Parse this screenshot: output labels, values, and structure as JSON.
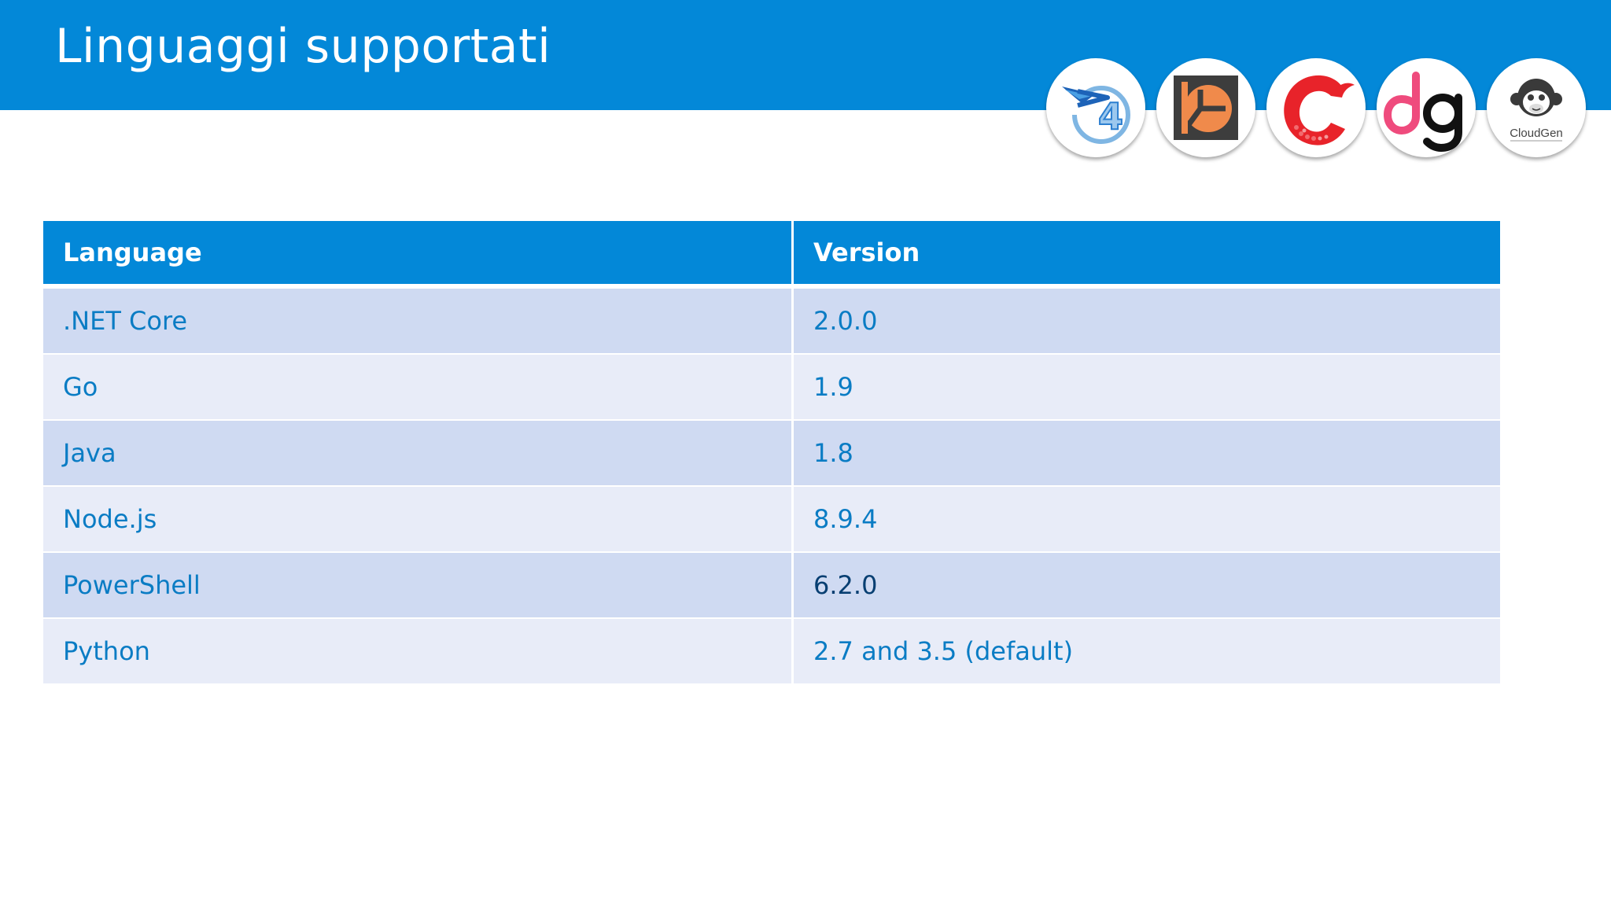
{
  "slide": {
    "title": "Linguaggi supportati"
  },
  "logos": [
    {
      "name": "azure-functions-4-logo",
      "icon": "arrow-clock-4"
    },
    {
      "name": "orange-square-chart-logo",
      "icon": "square-pie"
    },
    {
      "name": "red-swirl-logo",
      "icon": "red-c-swirl"
    },
    {
      "name": "dg-logo",
      "icon": "dg-letters",
      "text": "dg"
    },
    {
      "name": "cloudgen-monkey-logo",
      "icon": "monkey-face",
      "text": "CloudGen"
    }
  ],
  "table": {
    "headers": [
      "Language",
      "Version"
    ],
    "rows": [
      {
        "language": ".NET Core",
        "version": "2.0.0"
      },
      {
        "language": "Go",
        "version": "1.9"
      },
      {
        "language": "Java",
        "version": "1.8"
      },
      {
        "language": "Node.js",
        "version": "8.9.4"
      },
      {
        "language": "PowerShell",
        "version": "6.2.0"
      },
      {
        "language": "Python",
        "version": "2.7 and 3.5 (default)"
      }
    ]
  },
  "colors": {
    "accent": "#0388d8",
    "row_odd": "#cfdaf2",
    "row_even": "#e8ecf8",
    "cell_text": "#0a7cc4"
  }
}
